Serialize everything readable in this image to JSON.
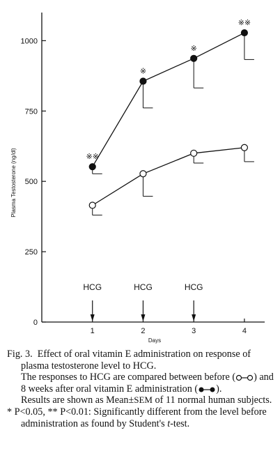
{
  "chart_data": {
    "type": "line",
    "x": [
      1,
      2,
      3,
      4
    ],
    "xlabel": "Days",
    "ylabel": "Plasma Testosterone (ng/dl)",
    "ylim": [
      0,
      1100
    ],
    "xlim": [
      0,
      4.4
    ],
    "yticks": [
      0,
      250,
      500,
      750,
      1000
    ],
    "xticks": [
      1,
      2,
      3,
      4
    ],
    "series": [
      {
        "marker": "filled-circle",
        "values": [
          552,
          856,
          937,
          1028
        ],
        "error": [
          25,
          95,
          105,
          95
        ],
        "error_direction": "down"
      },
      {
        "marker": "open-circle",
        "values": [
          415,
          527,
          600,
          620
        ],
        "error": [
          35,
          80,
          35,
          50
        ],
        "error_direction": "down"
      }
    ],
    "significance": [
      {
        "x": 1,
        "label": "※※"
      },
      {
        "x": 2,
        "label": "※"
      },
      {
        "x": 3,
        "label": "※"
      },
      {
        "x": 4,
        "label": "※※"
      }
    ],
    "annotations": [
      {
        "x": 1,
        "label": "HCG"
      },
      {
        "x": 2,
        "label": "HCG"
      },
      {
        "x": 3,
        "label": "HCG"
      }
    ],
    "grid": false
  },
  "caption": {
    "fig_label": "Fig. 3.",
    "title_text": "Effect of oral vitamin E administration on response of plasma testosterone level to HCG.",
    "para1_a": "The responses to HCG are compared between before (",
    "para1_b": ") and 8 weeks after oral vitamin E administration (",
    "para1_c": ").",
    "para2_a": "Results are shown as Mean",
    "para2_pm": "±",
    "para2_sem": "SEM",
    "para2_b": " of 11 normal human subjects.",
    "note_a": "* P<0.05, ** P<0.01:",
    "note_b": " Significantly different from the level before administration as found by Student's ",
    "note_t": "t",
    "note_c": "-test."
  }
}
